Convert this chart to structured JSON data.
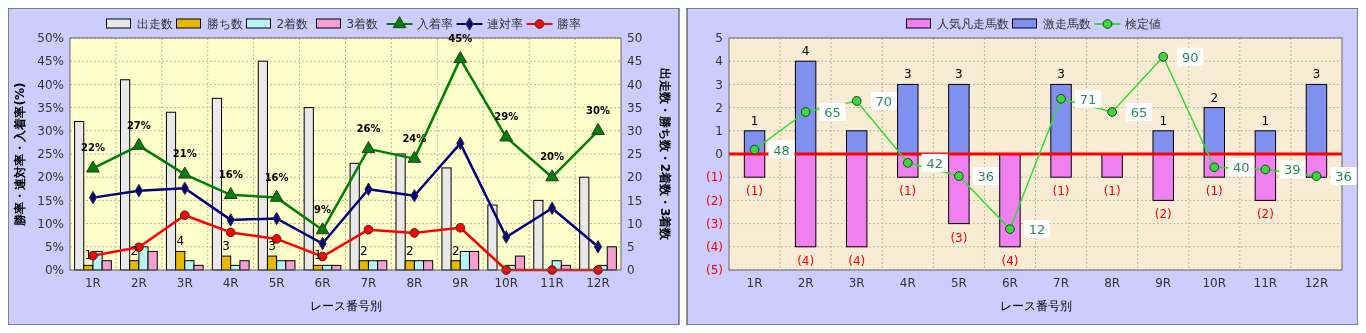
{
  "chart_data": [
    {
      "type": "bar",
      "xlabel": "レース番号別",
      "ylabel": "勝率・連対率・入着率(%)",
      "y2label": "出走数・勝ち数・2着数・3着数",
      "categories": [
        "1R",
        "2R",
        "3R",
        "4R",
        "5R",
        "6R",
        "7R",
        "8R",
        "9R",
        "10R",
        "11R",
        "12R"
      ],
      "series": [
        {
          "name": "出走数",
          "color": "#e8e8e8",
          "axis": "y2",
          "values": [
            32,
            41,
            34,
            37,
            45,
            35,
            23,
            25,
            22,
            14,
            15,
            20
          ]
        },
        {
          "name": "勝ち数",
          "color": "#e8b800",
          "axis": "y2",
          "values": [
            1,
            2,
            4,
            3,
            3,
            1,
            2,
            2,
            2,
            0,
            0,
            0
          ],
          "value_labels": [
            "1",
            "2",
            "4",
            "3",
            "3",
            "1",
            "2",
            "2",
            "2",
            null,
            null,
            null
          ]
        },
        {
          "name": "2着数",
          "color": "#b8f4f4",
          "axis": "y2",
          "values": [
            4,
            5,
            2,
            1,
            2,
            1,
            2,
            2,
            4,
            1,
            2,
            1
          ]
        },
        {
          "name": "3着数",
          "color": "#f4a0d0",
          "axis": "y2",
          "values": [
            2,
            4,
            1,
            2,
            2,
            1,
            2,
            2,
            4,
            3,
            1,
            5
          ]
        },
        {
          "name": "入着率",
          "type": "line",
          "color": "#008000",
          "marker": "triangle",
          "values": [
            21.9,
            26.8,
            20.6,
            16.2,
            15.6,
            8.6,
            26.1,
            24,
            45.5,
            28.6,
            20,
            30
          ],
          "value_labels": [
            "22%",
            "27%",
            "21%",
            "16%",
            "16%",
            "9%",
            "26%",
            "24%",
            "45%",
            "29%",
            "20%",
            "30%"
          ]
        },
        {
          "name": "連対率",
          "type": "line",
          "color": "#000080",
          "marker": "diamond",
          "values": [
            15.6,
            17.1,
            17.6,
            10.8,
            11.1,
            5.7,
            17.4,
            16,
            27.3,
            7.1,
            13.3,
            5
          ]
        },
        {
          "name": "勝率",
          "type": "line",
          "color": "#ff0000",
          "marker": "circle",
          "values": [
            3.1,
            4.9,
            11.8,
            8.1,
            6.7,
            2.9,
            8.7,
            8,
            9.1,
            0,
            0,
            0
          ]
        }
      ],
      "ylim": [
        0,
        50
      ],
      "yticks": [
        {
          "value": 0,
          "label": "0%"
        },
        {
          "value": 5,
          "label": "5%"
        },
        {
          "value": 10,
          "label": "10%"
        },
        {
          "value": 15,
          "label": "15%"
        },
        {
          "value": 20,
          "label": "20%"
        },
        {
          "value": 25,
          "label": "25%"
        },
        {
          "value": 30,
          "label": "30%"
        },
        {
          "value": 35,
          "label": "35%"
        },
        {
          "value": 40,
          "label": "40%"
        },
        {
          "value": 45,
          "label": "45%"
        },
        {
          "value": 50,
          "label": "50%"
        }
      ],
      "y2lim": [
        0,
        50
      ],
      "y2ticks": [
        0,
        5,
        10,
        15,
        20,
        25,
        30,
        35,
        40,
        45,
        50
      ],
      "grid": true,
      "legend": "top"
    },
    {
      "type": "bar",
      "stacked": true,
      "xlabel": "レース番号別",
      "categories": [
        "1R",
        "2R",
        "3R",
        "4R",
        "5R",
        "6R",
        "7R",
        "8R",
        "9R",
        "10R",
        "11R",
        "12R"
      ],
      "series": [
        {
          "name": "人気凡走馬数",
          "color": "#f080f0",
          "values": [
            -1,
            -4,
            -4,
            -1,
            -3,
            -4,
            -1,
            -1,
            -2,
            -1,
            -2,
            -1
          ],
          "value_labels": [
            "(1)",
            "(4)",
            "(4)",
            "(1)",
            "(3)",
            "(4)",
            "(1)",
            "(1)",
            "(2)",
            "(1)",
            "(2)",
            null
          ]
        },
        {
          "name": "激走馬数",
          "color": "#8090f0",
          "values": [
            1,
            4,
            1,
            3,
            3,
            0,
            3,
            0,
            1,
            2,
            1,
            3
          ],
          "value_labels": [
            "1",
            "4",
            null,
            "3",
            "3",
            null,
            "3",
            null,
            "1",
            "2",
            "1",
            "3"
          ]
        },
        {
          "name": "検定値",
          "type": "line",
          "color": "#33dd33",
          "marker": "circle",
          "axis": "y2",
          "values": [
            48,
            65,
            70,
            42,
            36,
            12,
            71,
            65,
            90,
            40,
            39,
            36
          ],
          "value_labels": [
            "48",
            "65",
            "70",
            "42",
            "36",
            "12",
            "71",
            "65",
            "90",
            "40",
            "39",
            "36"
          ]
        }
      ],
      "ylim": [
        -5,
        5
      ],
      "yticks": [
        {
          "value": -5,
          "label": "(5)"
        },
        {
          "value": -4,
          "label": "(4)"
        },
        {
          "value": -3,
          "label": "(3)"
        },
        {
          "value": -2,
          "label": "(2)"
        },
        {
          "value": -1,
          "label": "(1)"
        },
        0,
        1,
        2,
        3,
        4,
        5
      ],
      "y2lim": [
        -6.5,
        98.5
      ],
      "ref_lines": [
        {
          "axis": "y",
          "value": 0,
          "color": "#ff0000"
        }
      ],
      "grid": true,
      "legend": "top"
    }
  ]
}
